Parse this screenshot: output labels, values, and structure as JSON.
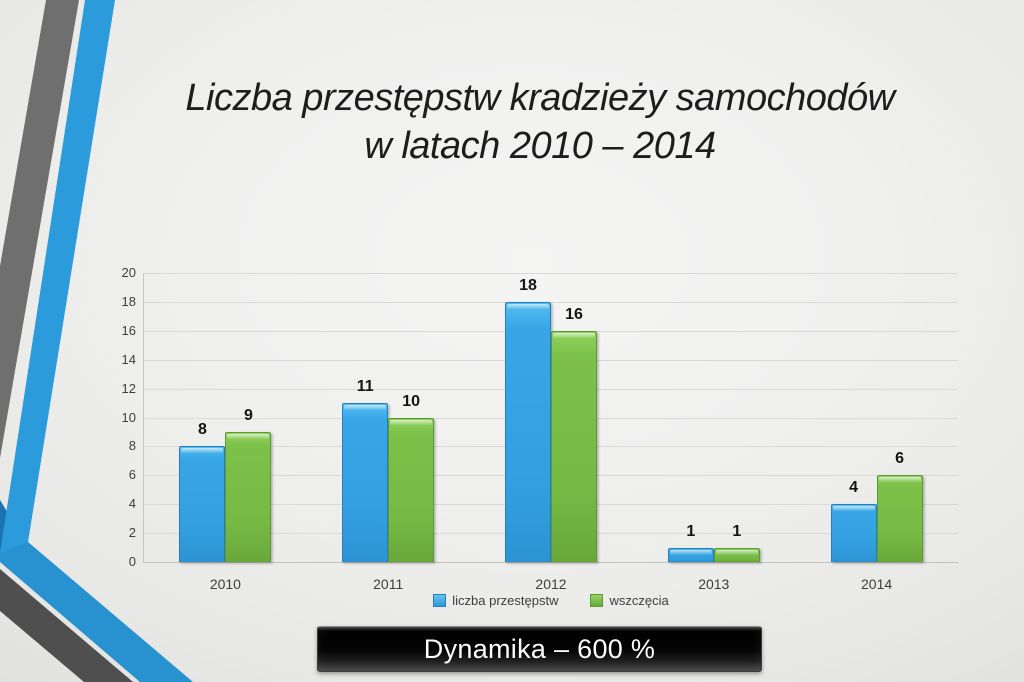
{
  "slide": {
    "title_line1": "Liczba przestępstw kradzieży samochodów",
    "title_line2": "w latach 2010 – 2014",
    "banner_text": "Dynamika – 600 %"
  },
  "theme": {
    "stripe_blue": "#2C9BDC",
    "stripe_blue_dark": "#1B74AE",
    "stripe_blue_shade": "rgba(0,45,90,0.08)",
    "stripe_gray_upper": "#6F6F6F",
    "stripe_gray_lower": "#4F4F4F",
    "series_blue": "#3BA7E6",
    "series_green": "#7CBE4B",
    "banner_background": "#0A0A0A",
    "banner_text_color": "#FCFCFC"
  },
  "chart_data": {
    "type": "bar",
    "title": "Liczba przestępstw kradzieży samochodów w latach 2010 – 2014",
    "categories": [
      "2010",
      "2011",
      "2012",
      "2013",
      "2014"
    ],
    "series": [
      {
        "name": "liczba przestępstw",
        "color": "#3BA7E6",
        "values": [
          8,
          11,
          18,
          1,
          4
        ]
      },
      {
        "name": "wszczęcia",
        "color": "#7CBE4B",
        "values": [
          9,
          10,
          16,
          1,
          6
        ]
      }
    ],
    "xlabel": "",
    "ylabel": "",
    "ylim": [
      0,
      20
    ],
    "ytick_step": 2,
    "grid": true,
    "legend_position": "bottom",
    "data_labels": true,
    "footer_banner": "Dynamika – 600 %"
  }
}
